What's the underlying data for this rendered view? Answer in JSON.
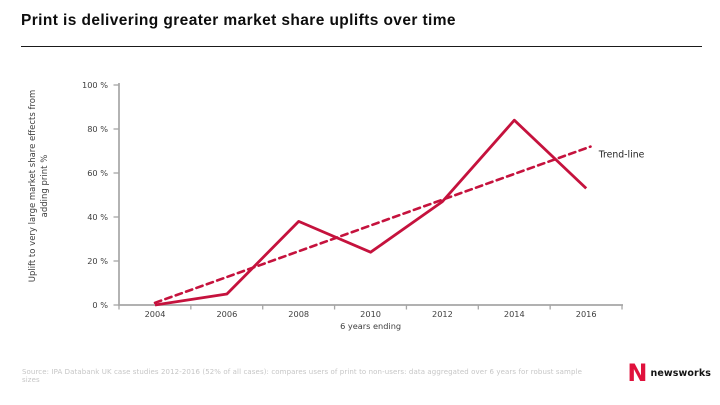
{
  "page": {
    "title": "Print is delivering greater market share uplifts over time",
    "footer_source": "Source: IPA Databank UK case studies 2012-2016 (52% of all cases): compares users of print to non-users: data aggregated over 6 years for robust sample sizes",
    "logo": {
      "letter": "N",
      "text": "newsworks"
    }
  },
  "colors": {
    "line": "#c5123d",
    "axis": "#a6a6a6",
    "tick_text": "#3f3f3f",
    "annotation_text": "#262626",
    "logo_red": "#e0113c",
    "footer_text": "#c6c6c6"
  },
  "chart_data": {
    "type": "line",
    "title": "",
    "ylabel_lines": [
      "Uplift to very large market share effects from",
      "adding print %"
    ],
    "xlabel": "6 years ending",
    "x_ticks": [
      "2004",
      "2006",
      "2008",
      "2010",
      "2012",
      "2014",
      "2016"
    ],
    "y_ticks": [
      "0 %",
      "20 %",
      "40 %",
      "60 %",
      "80 %",
      "100 %"
    ],
    "ylim": [
      0,
      100
    ],
    "xlim": [
      2004,
      2016
    ],
    "grid": false,
    "legend_position": "right-inline",
    "series": [
      {
        "style": "solid",
        "x": [
          2004,
          2006,
          2008,
          2010,
          2012,
          2014,
          2016
        ],
        "values": [
          0,
          5,
          38,
          24,
          47,
          84,
          53
        ]
      },
      {
        "style": "dashed",
        "x": [
          2004,
          2016.12
        ],
        "values": [
          1,
          72
        ]
      }
    ],
    "annotations": [
      {
        "text": "Trend-line",
        "x": 2016.35,
        "value": 67
      }
    ]
  }
}
